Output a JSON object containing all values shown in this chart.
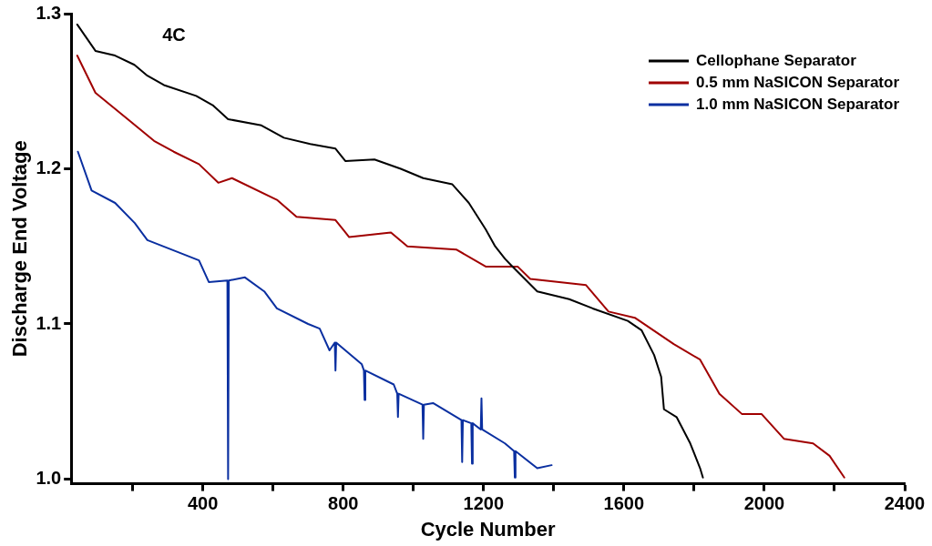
{
  "chart_data": {
    "type": "line",
    "xlabel": "Cycle Number",
    "ylabel": "Discharge End Voltage",
    "annotations": [
      "4C"
    ],
    "xlim": [
      25,
      2400
    ],
    "xticks": [
      {
        "value": 200,
        "label": null
      },
      400,
      {
        "value": 600,
        "label": null
      },
      800,
      {
        "value": 1000,
        "label": null
      },
      1200,
      {
        "value": 1400,
        "label": null
      },
      1600,
      {
        "value": 1800,
        "label": null
      },
      2000,
      {
        "value": 2200,
        "label": null
      },
      2400
    ],
    "ylim": [
      0.997,
      1.3
    ],
    "yticks": [
      {
        "value": 1.0,
        "label": "1.0"
      },
      1.1,
      1.2,
      1.3
    ],
    "grid": false,
    "legend": "top right",
    "marker": "none",
    "line_style": "solid",
    "series": [
      {
        "name": "Cellophane Separator",
        "color": "#000000",
        "x": [
          42,
          94,
          150,
          205,
          242,
          289,
          381,
          428,
          472,
          567,
          631,
          706,
          778,
          806,
          889,
          964,
          1028,
          1111,
          1158,
          1206,
          1233,
          1261,
          1278,
          1353,
          1444,
          1511,
          1611,
          1650,
          1686,
          1706,
          1714,
          1750,
          1789,
          1817,
          1825
        ],
        "values": [
          1.293,
          1.276,
          1.273,
          1.267,
          1.26,
          1.254,
          1.247,
          1.241,
          1.232,
          1.228,
          1.22,
          1.216,
          1.213,
          1.205,
          1.206,
          1.2,
          1.194,
          1.19,
          1.178,
          1.161,
          1.15,
          1.142,
          1.138,
          1.121,
          1.116,
          1.11,
          1.102,
          1.096,
          1.08,
          1.066,
          1.045,
          1.04,
          1.023,
          1.007,
          1.001
        ]
      },
      {
        "name": "0.5 mm NaSICON Separator",
        "color": "#a00000",
        "x": [
          42,
          94,
          186,
          261,
          317,
          389,
          444,
          483,
          611,
          667,
          778,
          817,
          936,
          983,
          1122,
          1206,
          1297,
          1333,
          1492,
          1556,
          1631,
          1742,
          1817,
          1872,
          1936,
          1992,
          2056,
          2139,
          2186,
          2228
        ],
        "values": [
          1.273,
          1.249,
          1.232,
          1.218,
          1.211,
          1.203,
          1.191,
          1.194,
          1.18,
          1.169,
          1.167,
          1.156,
          1.159,
          1.15,
          1.148,
          1.137,
          1.137,
          1.129,
          1.125,
          1.108,
          1.104,
          1.087,
          1.077,
          1.055,
          1.042,
          1.042,
          1.026,
          1.023,
          1.015,
          1.001
        ]
      },
      {
        "name": "1.0 mm NaSICON Separator",
        "color": "#0a2fa0",
        "x": [
          44,
          83,
          150,
          206,
          242,
          333,
          389,
          417,
          470,
          472,
          474,
          520,
          575,
          611,
          700,
          733,
          761,
          776,
          778,
          780,
          853,
          859,
          861,
          863,
          944,
          954,
          956,
          958,
          1026,
          1028,
          1030,
          1056,
          1137,
          1139,
          1141,
          1165,
          1167,
          1169,
          1192,
          1194,
          1196,
          1261,
          1287,
          1289,
          1291,
          1353,
          1394
        ],
        "values": [
          1.211,
          1.186,
          1.178,
          1.165,
          1.154,
          1.146,
          1.141,
          1.127,
          1.128,
          1.0,
          1.128,
          1.13,
          1.121,
          1.11,
          1.1,
          1.097,
          1.083,
          1.088,
          1.07,
          1.088,
          1.074,
          1.07,
          1.051,
          1.07,
          1.061,
          1.055,
          1.04,
          1.055,
          1.048,
          1.026,
          1.048,
          1.049,
          1.038,
          1.011,
          1.038,
          1.036,
          1.01,
          1.036,
          1.032,
          1.052,
          1.032,
          1.023,
          1.018,
          1.001,
          1.018,
          1.007,
          1.009
        ]
      }
    ]
  }
}
